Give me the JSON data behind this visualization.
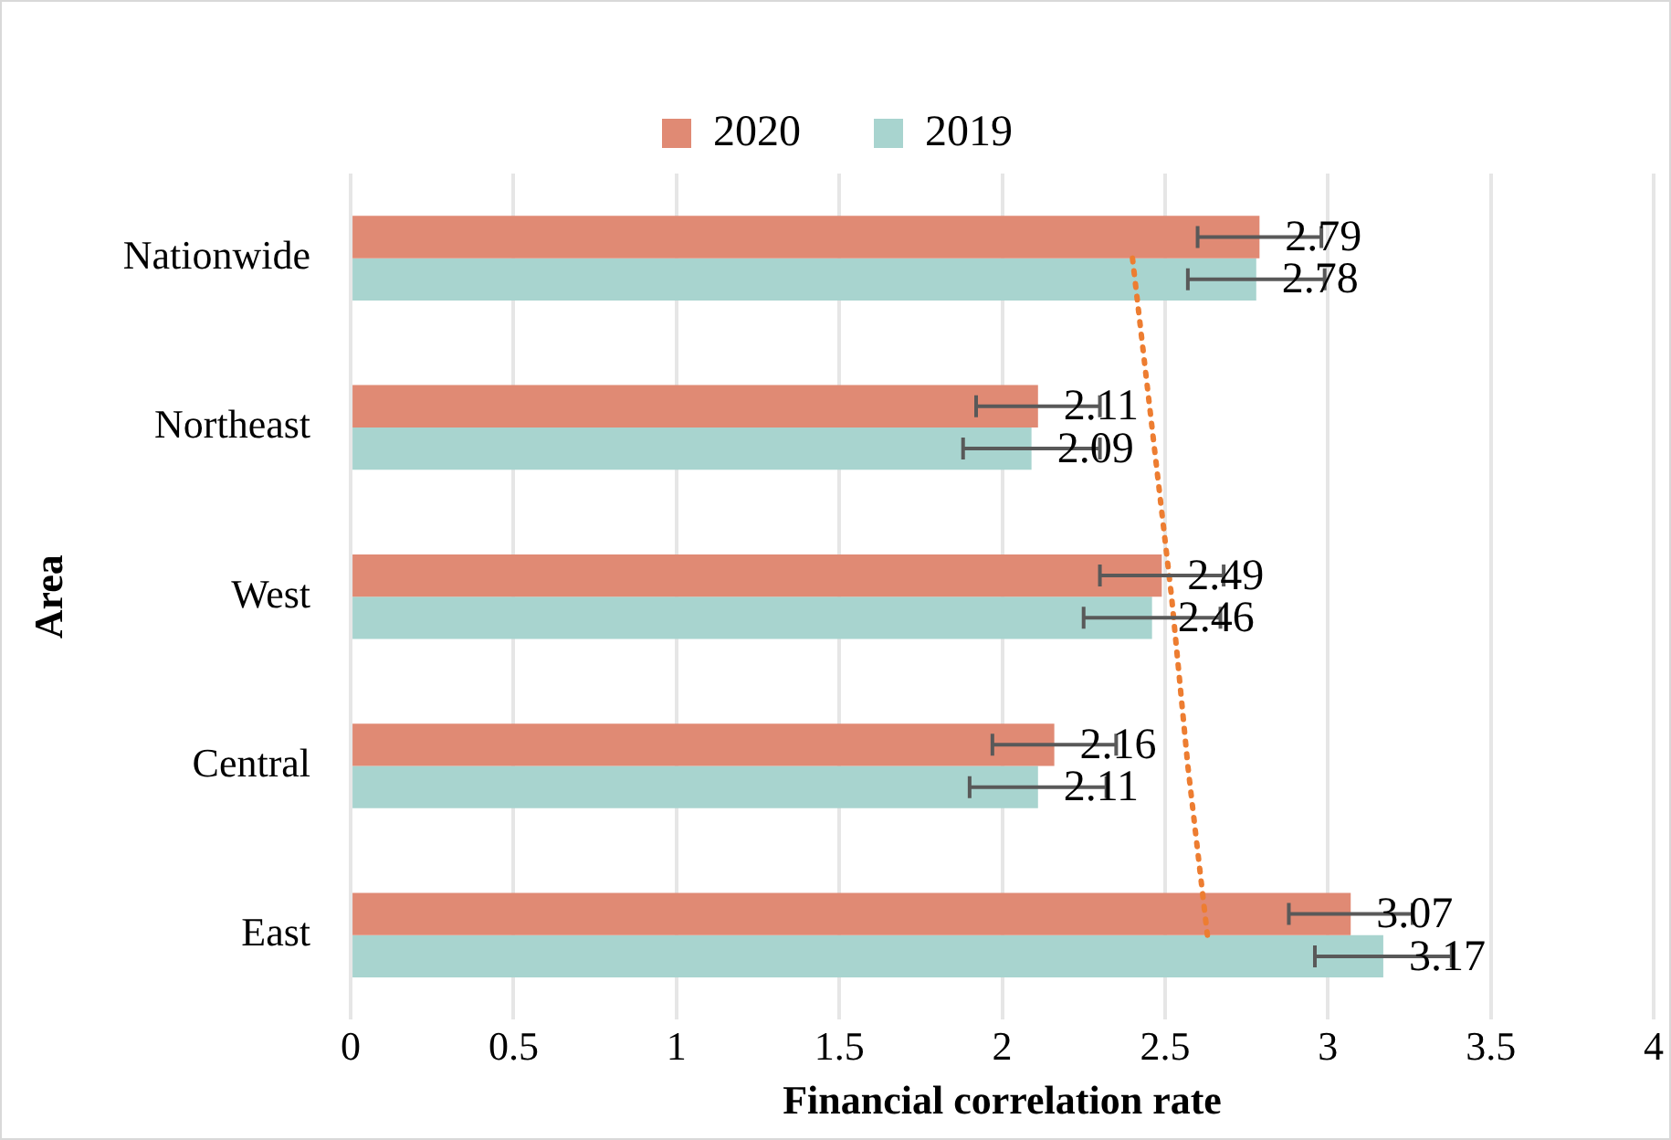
{
  "chart_data": {
    "type": "bar",
    "orientation": "horizontal",
    "xlabel": "Financial correlation rate",
    "ylabel": "Area",
    "categories": [
      "Nationwide",
      "Northeast",
      "West",
      "Central",
      "East"
    ],
    "series": [
      {
        "name": "2020",
        "color": "#e08a74",
        "values": [
          2.79,
          2.11,
          2.49,
          2.16,
          3.07
        ],
        "errors": [
          0.19,
          0.19,
          0.19,
          0.19,
          0.19
        ],
        "value_labels": [
          "2.79",
          "2.11",
          "2.49",
          "2.16",
          "3.07"
        ]
      },
      {
        "name": "2019",
        "color": "#a8d4cf",
        "values": [
          2.78,
          2.09,
          2.46,
          2.11,
          3.17
        ],
        "errors": [
          0.21,
          0.21,
          0.21,
          0.21,
          0.21
        ],
        "value_labels": [
          "2.78",
          "2.09",
          "2.46",
          "2.11",
          "3.17"
        ]
      },
      {
        "type": "line",
        "color": "#ed7d31",
        "line_style": "dotted",
        "marker": "none",
        "values": [
          2.4,
          2.46,
          2.52,
          2.57,
          2.63
        ]
      }
    ],
    "xlim": [
      0,
      4
    ],
    "xticks": [
      0,
      0.5,
      1,
      1.5,
      2,
      2.5,
      3,
      3.5,
      4
    ],
    "grid": "x",
    "legend": "top"
  }
}
